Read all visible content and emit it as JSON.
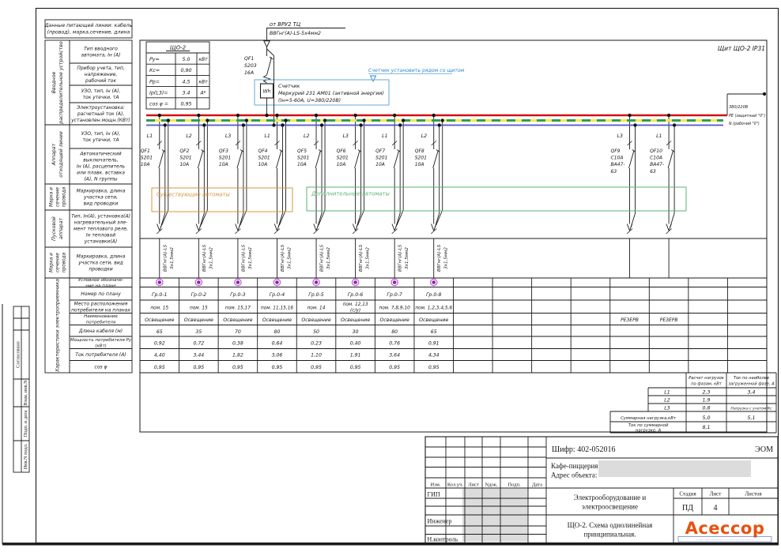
{
  "sheet": {
    "margin_stamps": [
      "Согласовано",
      "Взам. инв.N",
      "Подп. и дата",
      "Инв.N подл."
    ],
    "panel_label": "Щит ЩО-2 IP31"
  },
  "supply_note": {
    "lines": [
      "Данные питающей линии: кабель",
      "(провод), марка,сечение, длина"
    ]
  },
  "left_header": {
    "groups": [
      {
        "lines": [
          "Вводное",
          "распределительное устройство"
        ]
      },
      {
        "lines": [
          "Аппарат",
          "отходящей линии"
        ]
      },
      {
        "lines": [
          "Марка и",
          "сечение",
          "провода"
        ]
      },
      {
        "lines": [
          "Пусковой",
          "аппарат"
        ]
      },
      {
        "lines": [
          "Марка и",
          "сечение",
          "провода"
        ]
      },
      {
        "lines": [
          "Характеристики электроприемника"
        ]
      }
    ],
    "rows": [
      {
        "lines": [
          "Тип вводного",
          "автомата, Iн (А)"
        ]
      },
      {
        "lines": [
          "Прибор учета, тип,",
          "напряжение,",
          "рабочий ток"
        ]
      },
      {
        "lines": [
          "УЗО, тип, Iн (А),",
          "ток утечки, тА"
        ]
      },
      {
        "lines": [
          "Электроустановка:",
          "расчетный ток (А),",
          "установлен.мощн.(КВт)"
        ]
      },
      {
        "lines": [
          "УЗО, тип, Iн (А),",
          "ток утечки, тА"
        ]
      },
      {
        "lines": [
          "Автоматический",
          "выключатель,",
          "Iн (А), расцепитель",
          "или плавк. вставка",
          "(А), N группы"
        ]
      },
      {
        "lines": [
          "Маркировка, длина",
          "участка сети,",
          "вид проводки"
        ]
      },
      {
        "lines": [
          "Тип, Iн(А), установка(А)",
          "нагревательный эле-",
          "мент теплового реле,",
          "Iн тепловой",
          "установки(А)"
        ]
      },
      {
        "lines": [
          "Маркировка, длина",
          "участка сети, вид",
          "проводки"
        ]
      },
      {
        "lines": [
          "Условное обозначе-",
          "ние на плане"
        ]
      },
      {
        "lines": [
          "Номер по плану"
        ]
      },
      {
        "lines": [
          "Место расположения",
          "потребителя на планах"
        ]
      },
      {
        "lines": [
          "Наименование",
          "потребителя"
        ]
      },
      {
        "lines": [
          "Длина кабеля (м)"
        ]
      },
      {
        "lines": [
          "Мощность потребителя Ру",
          "(кВт)"
        ]
      },
      {
        "lines": [
          "Ток потребителя (А)"
        ]
      },
      {
        "lines": [
          "cos φ"
        ]
      }
    ]
  },
  "panel_params": {
    "title": "ЩО-2",
    "rows": [
      {
        "label": "Ру=",
        "value": "5.0",
        "unit": "кВт"
      },
      {
        "label": "Кс=",
        "value": "0,90",
        "unit": ""
      },
      {
        "label": "Рр=",
        "value": "4,5",
        "unit": "кВт"
      },
      {
        "label": "Iр(L3)=",
        "value": "3.4",
        "unit": "А*"
      },
      {
        "label": "cos φ =",
        "value": "0,95",
        "unit": ""
      }
    ]
  },
  "feeder": {
    "source": "от ВРУ2 ТЦ",
    "cable": "ВВГнг(А)-LS-5х4мм2",
    "breaker": {
      "name": "QF1",
      "type": "S203",
      "rating": "16А"
    },
    "meter": {
      "symbol": "Wh",
      "title": "Счетчик",
      "model": "Меркурий 231 АМ01 (активной энергии)",
      "params": "(Iн=5-60А, U=380/220В)"
    },
    "note": "Счетчик установить рядом со щитом"
  },
  "buses": {
    "voltage": "380/220В",
    "pe_label": "PE (защитный \"0\")",
    "n_label": "N (рабочий \"0\")"
  },
  "group_boxes": {
    "existing": "Существующие автоматы",
    "additional": "Дополнительные автоматы"
  },
  "circuits": [
    {
      "phase": "L1",
      "breaker": [
        "QF1",
        "S201",
        "10А"
      ],
      "cable": [
        "ВВГнг(А)-LS",
        "3х1,5мм2"
      ],
      "group": "Гр.0-1",
      "room": [
        "пом. 15"
      ],
      "consumer": "Освещение",
      "length": "65",
      "power": "0,92",
      "current": "4,40",
      "cos": "0,95"
    },
    {
      "phase": "L2",
      "breaker": [
        "QF2",
        "S201",
        "10А"
      ],
      "cable": [
        "ВВГнг(А)-LS",
        "3х1,5мм2"
      ],
      "group": "Гр.0-2",
      "room": [
        "пом. 15"
      ],
      "consumer": "Освещение",
      "length": "35",
      "power": "0,72",
      "current": "3,44",
      "cos": "0,95"
    },
    {
      "phase": "L3",
      "breaker": [
        "QF3",
        "S201",
        "10А"
      ],
      "cable": [
        "ВВГнг(А)-LS",
        "3х1,5мм2"
      ],
      "group": "Гр.0-3",
      "room": [
        "пом. 15,17"
      ],
      "consumer": "Освещение",
      "length": "70",
      "power": "0,38",
      "current": "1,82",
      "cos": "0,95"
    },
    {
      "phase": "L1",
      "breaker": [
        "QF4",
        "S201",
        "10А"
      ],
      "cable": [
        "ВВГнг(А)-LS",
        "3х1,5мм2"
      ],
      "group": "Гр.0-4",
      "room": [
        "пом. 11,15,16"
      ],
      "consumer": "Освещение",
      "length": "80",
      "power": "0,64",
      "current": "3,06",
      "cos": "0,95"
    },
    {
      "phase": "L2",
      "breaker": [
        "QF5",
        "S201",
        "10А"
      ],
      "cable": [
        "ВВГнг(А)-LS",
        "3х1,5мм2"
      ],
      "group": "Гр.0-5",
      "room": [
        "пом. 14"
      ],
      "consumer": "Освещение",
      "length": "50",
      "power": "0,23",
      "current": "1,10",
      "cos": "0,95"
    },
    {
      "phase": "L3",
      "breaker": [
        "QF6",
        "S201",
        "10А"
      ],
      "cable": [
        "ВВГнг(А)-LS",
        "3х1,5мм2"
      ],
      "group": "Гр.0-6",
      "room": [
        "пом. 12,13",
        "(с/у)"
      ],
      "consumer": "Освещение",
      "length": "30",
      "power": "0,40",
      "current": "1,91",
      "cos": "0,95"
    },
    {
      "phase": "L1",
      "breaker": [
        "QF7",
        "S201",
        "10А"
      ],
      "cable": [
        "ВВГнг(А)-LS",
        "3х1,5мм2"
      ],
      "group": "Гр.0-7",
      "room": [
        "пом. 7,8,9,10"
      ],
      "consumer": "Освещение",
      "length": "80",
      "power": "0,76",
      "current": "3,64",
      "cos": "0,95"
    },
    {
      "phase": "L2",
      "breaker": [
        "QF8",
        "S201",
        "10А"
      ],
      "cable": [
        "ВВГнг(А)-LS",
        "3х1,5мм2"
      ],
      "group": "Гр.0-8",
      "room": [
        "пом. 1,2,3,4,5,6"
      ],
      "consumer": "Освещение",
      "length": "65",
      "power": "0,91",
      "current": "4,34",
      "cos": "0,95"
    }
  ],
  "reserve_circuits": [
    {
      "phase": "L3",
      "breaker": [
        "QF9",
        "C10A",
        "ВА47-",
        "63"
      ],
      "consumer": "РЕЗЕРВ"
    },
    {
      "phase": "L1",
      "breaker": [
        "QF10",
        "C10A",
        "ВА47-",
        "63"
      ],
      "consumer": "РЕЗЕРВ"
    }
  ],
  "load_summary": {
    "col_headers": [
      {
        "lines": [
          "Расчет нагрузок",
          "по фазам, кВт"
        ]
      },
      {
        "lines": [
          "Ток по наиболее",
          "загруженной фазе, А"
        ]
      }
    ],
    "note": "Нагрузка с учетом Кс",
    "rows": [
      {
        "label_lines": [
          "L1"
        ],
        "phase_kw": "2,3",
        "max_current": "3,4"
      },
      {
        "label_lines": [
          "L2"
        ],
        "phase_kw": "1,9",
        "max_current": ""
      },
      {
        "label_lines": [
          "L3"
        ],
        "phase_kw": "0,8",
        "max_current": ""
      },
      {
        "label_lines": [
          "Суммарная нагрузка,кВт"
        ],
        "phase_kw": "5,0",
        "max_current": "5,1"
      },
      {
        "label_lines": [
          "Ток по суммарной",
          "нагрузке, А"
        ],
        "phase_kw": "8,1",
        "max_current": ""
      }
    ]
  },
  "title_block": {
    "code": "Шифр: 402-052016",
    "doc_type": "ЭОМ",
    "object_name": "Кафе-пиццерия",
    "address_label": "Адрес объекта:",
    "rev_headers": [
      "Изм.",
      "Кол.уч.",
      "Лист",
      "Nдок.",
      "Подп.",
      "Дата"
    ],
    "roles": [
      "ГИП",
      "Инженер",
      "Н.контроль"
    ],
    "project_title": {
      "lines": [
        "Электрооборудование и",
        "электроосвещение"
      ]
    },
    "sheet_title": {
      "lines": [
        "ЩО-2. Схема однолинейная",
        "принципиальная."
      ]
    },
    "stage_headers": [
      "Стадия",
      "Лист",
      "Листов"
    ],
    "stage": "ПД",
    "sheet_no": "4",
    "sheets_total": "",
    "logo": "Асессор",
    "logo_sub": "·· ····· · ······ ··············· · ·· ·· ···· · ··· ·· ··· ·· ···· ···"
  },
  "colors": {
    "bus_phase": "#d11111",
    "bus_pe_yellow": "#f2e94e",
    "bus_pe_green": "#2f9e52",
    "bus_n": "#5353c8",
    "annotation_blue": "#2f87cc",
    "meter_box_blue": "#6aa7d6",
    "existing_box_orange": "#d9943b",
    "additional_box_green": "#5cb270",
    "symbol_purple": "#8e24aa",
    "symbol_ring": "#c06ad0",
    "logo_orange": "#e8500f",
    "redaction_grey": "#dcdcdc"
  }
}
